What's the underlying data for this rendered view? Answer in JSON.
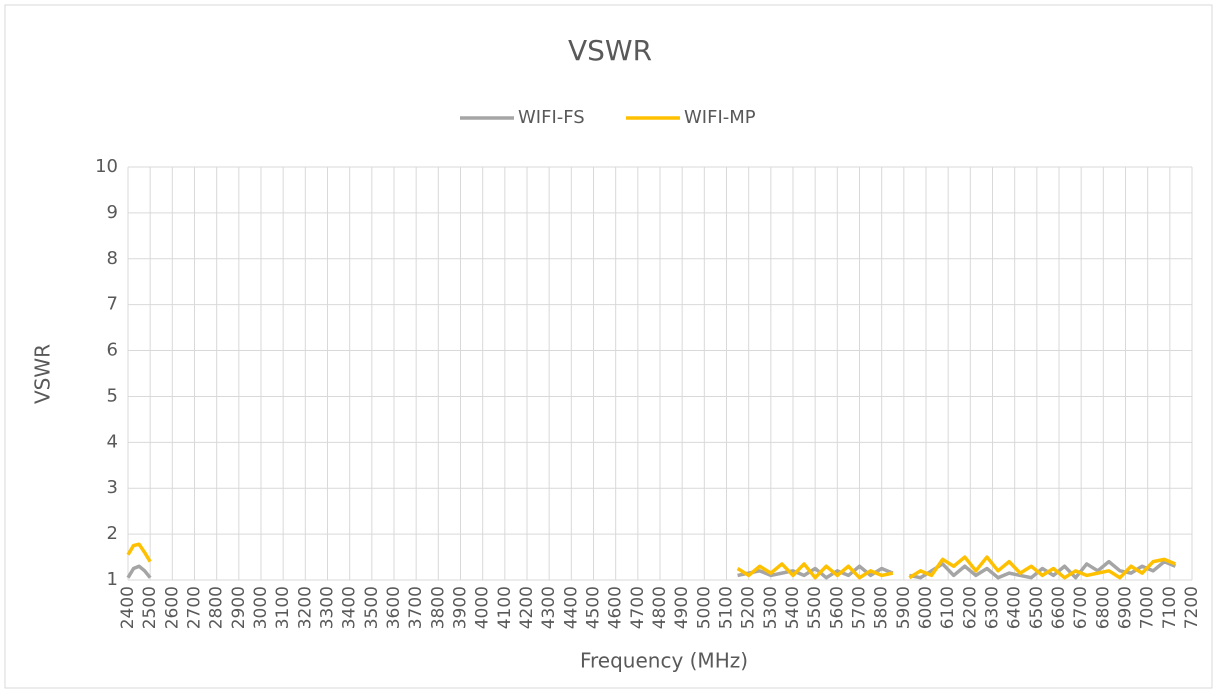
{
  "chart_data": {
    "type": "line",
    "title": "VSWR",
    "x_label": "Frequency (MHz)",
    "y_label": "VSWR",
    "x": [
      2400,
      2425,
      2450,
      2475,
      2500,
      2525,
      5150,
      5200,
      5250,
      5300,
      5350,
      5400,
      5450,
      5500,
      5550,
      5600,
      5650,
      5700,
      5750,
      5800,
      5850,
      5875,
      5925,
      5975,
      6025,
      6075,
      6125,
      6175,
      6225,
      6275,
      6325,
      6375,
      6425,
      6475,
      6525,
      6575,
      6625,
      6675,
      6725,
      6775,
      6825,
      6875,
      6925,
      6975,
      7025,
      7075,
      7125
    ],
    "series": [
      {
        "name": "WIFI-FS",
        "color": "#a5a5a5",
        "values": [
          1.05,
          1.25,
          1.3,
          1.2,
          1.05,
          null,
          1.1,
          1.15,
          1.2,
          1.1,
          1.15,
          1.2,
          1.1,
          1.25,
          1.05,
          1.2,
          1.1,
          1.3,
          1.1,
          1.25,
          1.15,
          null,
          1.1,
          1.05,
          1.2,
          1.35,
          1.1,
          1.3,
          1.1,
          1.25,
          1.05,
          1.15,
          1.1,
          1.05,
          1.25,
          1.1,
          1.3,
          1.05,
          1.35,
          1.2,
          1.4,
          1.2,
          1.15,
          1.3,
          1.2,
          1.4,
          1.3
        ]
      },
      {
        "name": "WIFI-MP",
        "color": "#ffc000",
        "values": [
          1.55,
          1.75,
          1.78,
          1.6,
          1.4,
          null,
          1.25,
          1.1,
          1.3,
          1.15,
          1.35,
          1.1,
          1.35,
          1.05,
          1.3,
          1.1,
          1.3,
          1.05,
          1.2,
          1.1,
          1.15,
          null,
          1.05,
          1.2,
          1.1,
          1.45,
          1.3,
          1.5,
          1.2,
          1.5,
          1.2,
          1.4,
          1.15,
          1.3,
          1.1,
          1.25,
          1.05,
          1.2,
          1.1,
          1.15,
          1.2,
          1.05,
          1.3,
          1.15,
          1.4,
          1.45,
          1.35
        ]
      }
    ],
    "xlim": [
      2400,
      7200
    ],
    "xticks": [
      2400,
      2500,
      2600,
      2700,
      2800,
      2900,
      3000,
      3100,
      3200,
      3300,
      3400,
      3500,
      3600,
      3700,
      3800,
      3900,
      4000,
      4100,
      4200,
      4300,
      4400,
      4500,
      4600,
      4700,
      4800,
      4900,
      5000,
      5100,
      5200,
      5300,
      5400,
      5500,
      5600,
      5700,
      5800,
      5900,
      6000,
      6100,
      6200,
      6300,
      6400,
      6500,
      6600,
      6700,
      6800,
      6900,
      7000,
      7100,
      7200
    ],
    "ylim": [
      1,
      10
    ],
    "yticks": [
      1,
      2,
      3,
      4,
      5,
      6,
      7,
      8,
      9,
      10
    ],
    "grid": true,
    "legend": "top"
  }
}
